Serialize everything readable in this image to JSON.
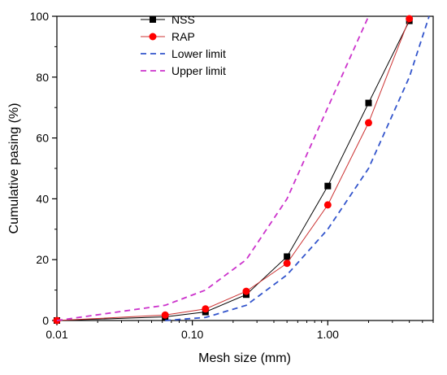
{
  "chart_data": {
    "type": "line",
    "xscale": "log",
    "xlim": [
      0.01,
      6
    ],
    "ylim": [
      0,
      100
    ],
    "xlabel": "Mesh size (mm)",
    "ylabel": "Cumulative pasing (%)",
    "xticks": [
      {
        "value": 0.01,
        "label": "0.01"
      },
      {
        "value": 0.1,
        "label": "0.10"
      },
      {
        "value": 1,
        "label": "1.00"
      }
    ],
    "yticks": [
      {
        "value": 0,
        "label": "0"
      },
      {
        "value": 20,
        "label": "20"
      },
      {
        "value": 40,
        "label": "40"
      },
      {
        "value": 60,
        "label": "60"
      },
      {
        "value": 80,
        "label": "80"
      },
      {
        "value": 100,
        "label": "100"
      }
    ],
    "grid": false,
    "legend_position": "top-left",
    "series": [
      {
        "name": "NSS",
        "style": "line-markers",
        "marker": "square",
        "color": "#000000",
        "marker_color": "#000000",
        "x": [
          0.01,
          0.063,
          0.125,
          0.25,
          0.5,
          1.0,
          2.0,
          4.0
        ],
        "y": [
          0,
          1.2,
          2.8,
          8.5,
          21.0,
          44.2,
          71.5,
          98.5
        ]
      },
      {
        "name": "RAP",
        "style": "line-markers",
        "marker": "circle",
        "color": "#cc3333",
        "marker_color": "#ff0000",
        "x": [
          0.01,
          0.063,
          0.125,
          0.25,
          0.5,
          1.0,
          2.0,
          4.0
        ],
        "y": [
          0,
          1.8,
          3.8,
          9.6,
          18.8,
          38.0,
          65.0,
          99.2
        ]
      },
      {
        "name": "Lower limit",
        "style": "dashed",
        "color": "#3355cc",
        "x": [
          0.063,
          0.125,
          0.25,
          0.5,
          1.0,
          2.0,
          4.0,
          5.6
        ],
        "y": [
          0,
          1,
          5,
          15,
          30,
          50,
          80,
          100
        ]
      },
      {
        "name": "Upper limit",
        "style": "dashed",
        "color": "#cc33cc",
        "x": [
          0.01,
          0.063,
          0.125,
          0.25,
          0.5,
          1.0,
          2.0
        ],
        "y": [
          0,
          5,
          10,
          20,
          40,
          70,
          100
        ]
      }
    ]
  }
}
